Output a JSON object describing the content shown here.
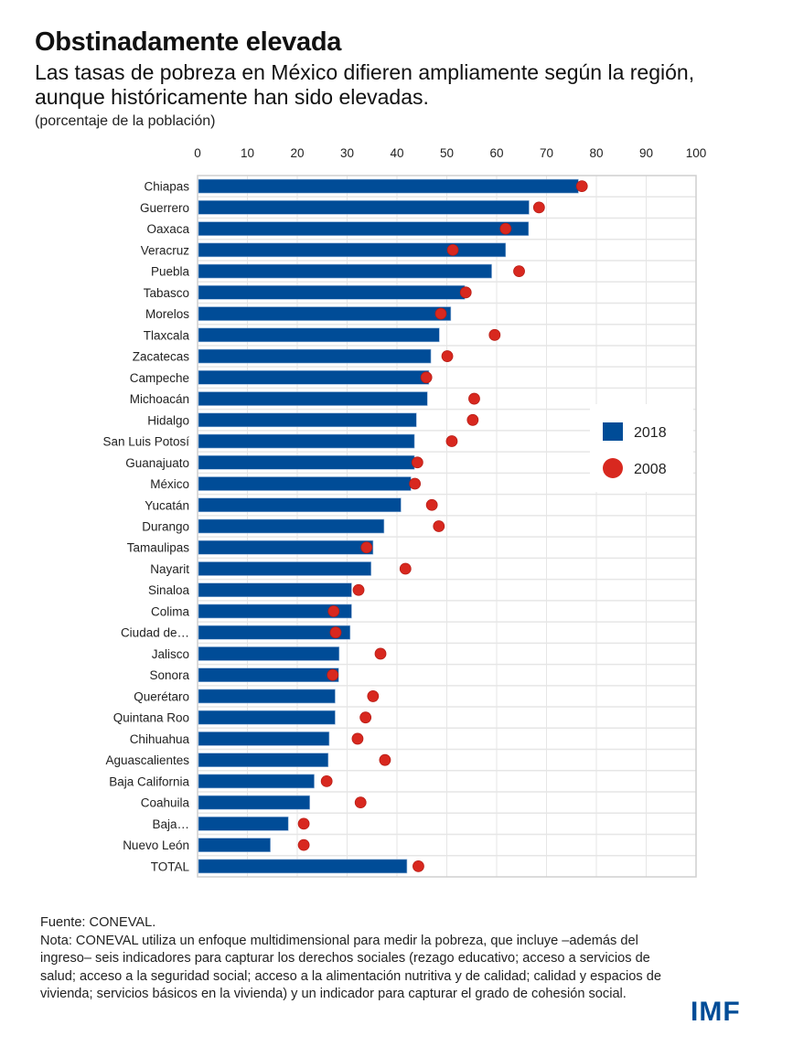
{
  "header": {
    "title": "Obstinadamente elevada",
    "subtitle": "Las tasas de pobreza en México difieren ampliamente según la región, aunque históricamente han sido elevadas.",
    "units": "(porcentaje de la población)"
  },
  "colors": {
    "bar_2018": "#004c97",
    "dot_2008": "#d8281f",
    "grid": "#e6e6e6",
    "frame": "#cfcfcf"
  },
  "chart_data": {
    "type": "bar",
    "orientation": "horizontal",
    "title": "Obstinadamente elevada",
    "xlabel": "",
    "ylabel": "",
    "xlim": [
      0,
      100
    ],
    "xticks": [
      "0",
      "10",
      "20",
      "30",
      "40",
      "50",
      "60",
      "70",
      "80",
      "90",
      "100"
    ],
    "grid": true,
    "legend_position": "right-middle",
    "categories": [
      "Chiapas",
      "Guerrero",
      "Oaxaca",
      "Veracruz",
      "Puebla",
      "Tabasco",
      "Morelos",
      "Tlaxcala",
      "Zacatecas",
      "Campeche",
      "Michoacán",
      "Hidalgo",
      "San Luis Potosí",
      "Guanajuato",
      "México",
      "Yucatán",
      "Durango",
      "Tamaulipas",
      "Nayarit",
      "Sinaloa",
      "Colima",
      "Ciudad de…",
      "Jalisco",
      "Sonora",
      "Querétaro",
      "Quintana Roo",
      "Chihuahua",
      "Aguascalientes",
      "Baja California",
      "Coahuila",
      "Baja…",
      "Nuevo León",
      "TOTAL"
    ],
    "series": [
      {
        "name": "2018",
        "marker": "bar",
        "values": [
          76.4,
          66.5,
          66.4,
          61.8,
          59.0,
          53.6,
          50.8,
          48.5,
          46.8,
          46.4,
          46.1,
          43.9,
          43.5,
          43.5,
          42.8,
          40.8,
          37.4,
          35.2,
          34.8,
          30.9,
          30.9,
          30.6,
          28.4,
          28.3,
          27.6,
          27.6,
          26.4,
          26.2,
          23.4,
          22.5,
          18.2,
          14.6,
          42.0
        ]
      },
      {
        "name": "2008",
        "marker": "dot",
        "values": [
          77.1,
          68.5,
          61.8,
          51.2,
          64.5,
          53.8,
          48.8,
          59.6,
          50.1,
          45.9,
          55.5,
          55.2,
          51.0,
          44.1,
          43.6,
          47.0,
          48.4,
          33.9,
          41.7,
          32.3,
          27.3,
          27.7,
          36.7,
          27.1,
          35.2,
          33.7,
          32.1,
          37.6,
          25.9,
          32.7,
          21.3,
          21.3,
          44.3
        ]
      }
    ]
  },
  "footer": {
    "source": "Fuente: CONEVAL.",
    "note": "Nota: CONEVAL utiliza un enfoque multidimensional  para medir la pobreza, que incluye –además del ingreso– seis indicadores para capturar los derechos sociales (rezago educativo; acceso a servicios de salud; acceso a la seguridad social; acceso a la alimentación  nutritiva y de calidad; calidad y espacios de vivienda;  servicios básicos en la vivienda) y un indicador para capturar el grado de cohesión social."
  },
  "logo": {
    "text": "IMF"
  }
}
